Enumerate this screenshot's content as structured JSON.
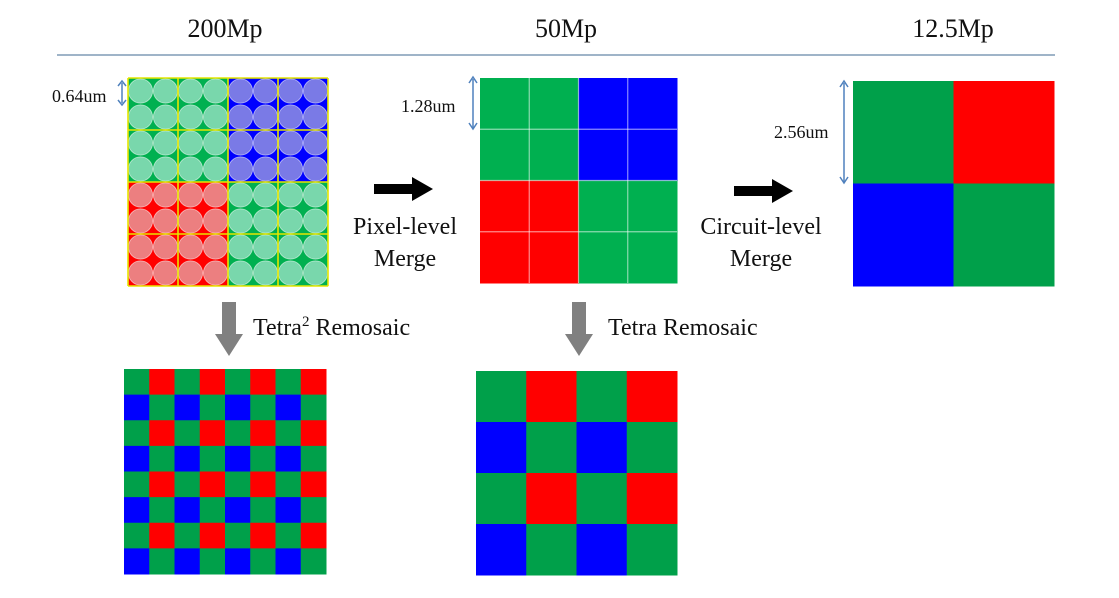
{
  "header": {
    "col1": "200Mp",
    "col2": "50Mp",
    "col3": "12.5Mp"
  },
  "labels": {
    "pixel_merge_line1": "Pixel-level",
    "pixel_merge_line2": "Merge",
    "circuit_merge_line1": "Circuit-level",
    "circuit_merge_line2": "Merge",
    "tetra2_remosaic_prefix": "Tetra",
    "tetra2_remosaic_sup": "2",
    "tetra2_remosaic_suffix": " Remosaic",
    "tetra_remosaic": "Tetra Remosaic"
  },
  "dimensions": {
    "pitch_200mp": "0.64um",
    "pitch_50mp": "1.28um",
    "pitch_12mp": "2.56um"
  },
  "colors": {
    "green": "#00b050",
    "dark_green": "#00a04a",
    "red": "#ff0000",
    "blue": "#0000ff",
    "pale_green": "#79d7ac",
    "pale_red": "#ec7f80",
    "pale_blue": "#7a7ae6",
    "subpix_yellow": "#e6e600",
    "arrow_black": "#000000",
    "arrow_grey": "#808080",
    "dim_line": "#4f81bd"
  },
  "grids": {
    "tetra2_quadrants": [
      [
        "G",
        "B"
      ],
      [
        "R",
        "G"
      ]
    ],
    "nona_50mp": [
      [
        "G",
        "B"
      ],
      [
        "R",
        "G"
      ]
    ],
    "bayer_12mp": [
      [
        "G",
        "R"
      ],
      [
        "B",
        "G"
      ]
    ],
    "remosaic_8x8": [
      [
        "G",
        "R",
        "G",
        "R",
        "G",
        "R",
        "G",
        "R"
      ],
      [
        "B",
        "G",
        "B",
        "G",
        "B",
        "G",
        "B",
        "G"
      ],
      [
        "G",
        "R",
        "G",
        "R",
        "G",
        "R",
        "G",
        "R"
      ],
      [
        "B",
        "G",
        "B",
        "G",
        "B",
        "G",
        "B",
        "G"
      ],
      [
        "G",
        "R",
        "G",
        "R",
        "G",
        "R",
        "G",
        "R"
      ],
      [
        "B",
        "G",
        "B",
        "G",
        "B",
        "G",
        "B",
        "G"
      ],
      [
        "G",
        "R",
        "G",
        "R",
        "G",
        "R",
        "G",
        "R"
      ],
      [
        "B",
        "G",
        "B",
        "G",
        "B",
        "G",
        "B",
        "G"
      ]
    ],
    "remosaic_4x4": [
      [
        "G",
        "R",
        "G",
        "R"
      ],
      [
        "B",
        "G",
        "B",
        "G"
      ],
      [
        "G",
        "R",
        "G",
        "R"
      ],
      [
        "B",
        "G",
        "B",
        "G"
      ]
    ]
  }
}
